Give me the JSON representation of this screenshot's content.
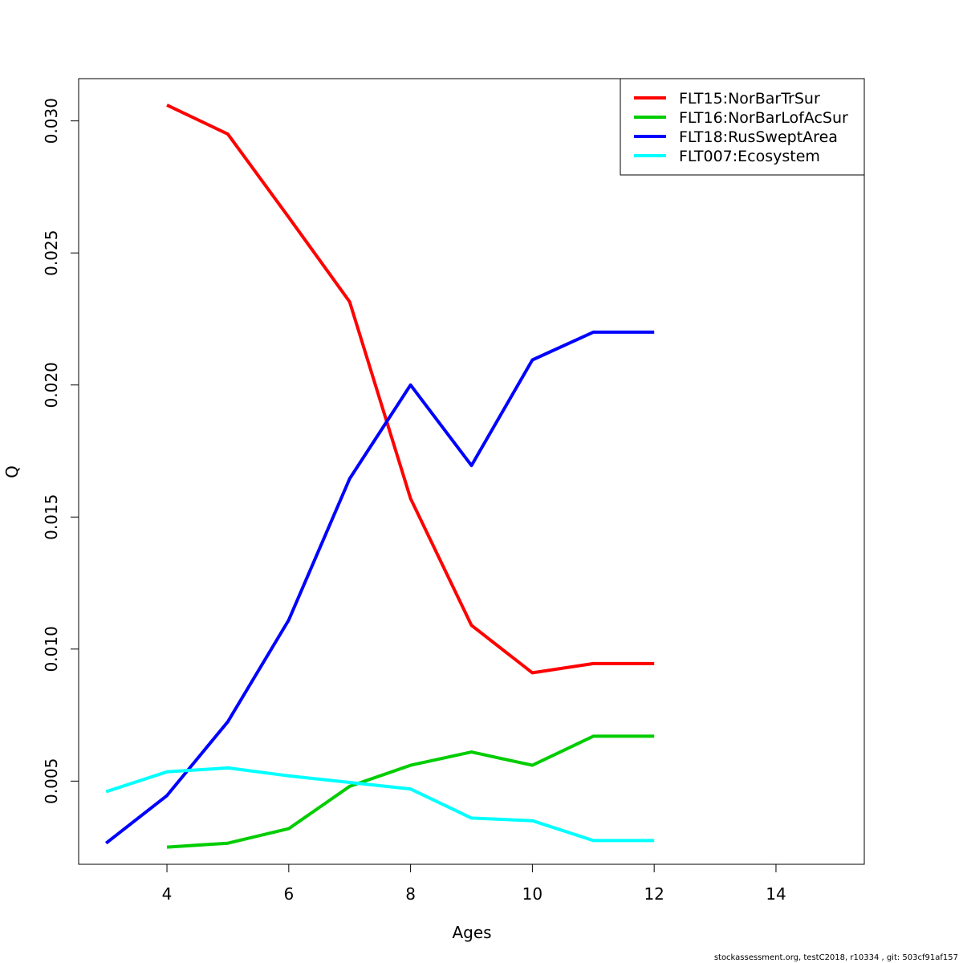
{
  "chart_data": {
    "type": "line",
    "xlabel": "Ages",
    "ylabel": "Q",
    "xlim": [
      2.55,
      15.45
    ],
    "ylim": [
      1.85,
      31.6
    ],
    "y_scale_factor": 0.001,
    "xticks": [
      4,
      6,
      8,
      10,
      12,
      14
    ],
    "yticks": [
      5,
      10,
      15,
      20,
      25,
      30
    ],
    "ytick_labels": [
      "0.005",
      "0.010",
      "0.015",
      "0.020",
      "0.025",
      "0.030"
    ],
    "grid": false,
    "legend_position": "top-right",
    "series": [
      {
        "name": "FLT15:NorBarTrSur",
        "color": "#ff0000",
        "x": [
          4,
          5,
          6,
          7,
          8,
          9,
          10,
          11,
          12
        ],
        "y": [
          30.6,
          29.5,
          26.35,
          23.15,
          15.7,
          10.9,
          9.1,
          9.45,
          9.45
        ]
      },
      {
        "name": "FLT16:NorBarLofAcSur",
        "color": "#00cd00",
        "x": [
          4,
          5,
          6,
          7,
          8,
          9,
          10,
          11,
          12
        ],
        "y": [
          2.5,
          2.65,
          3.2,
          4.8,
          5.6,
          6.1,
          5.6,
          6.7,
          6.7
        ]
      },
      {
        "name": "FLT18:RusSweptArea",
        "color": "#0000ff",
        "x": [
          3,
          4,
          5,
          6,
          7,
          8,
          9,
          10,
          11,
          12
        ],
        "y": [
          2.65,
          4.45,
          7.25,
          11.1,
          16.45,
          20.0,
          16.95,
          20.95,
          22.0,
          22.0
        ]
      },
      {
        "name": "FLT007:Ecosystem",
        "color": "#00ffff",
        "x": [
          3,
          4,
          5,
          6,
          7,
          8,
          9,
          10,
          11,
          12
        ],
        "y": [
          4.6,
          5.35,
          5.5,
          5.2,
          4.95,
          4.7,
          3.6,
          3.5,
          2.75,
          2.75
        ]
      }
    ]
  },
  "footer": "stockassessment.org, testC2018, r10334 , git: 503cf91af157"
}
